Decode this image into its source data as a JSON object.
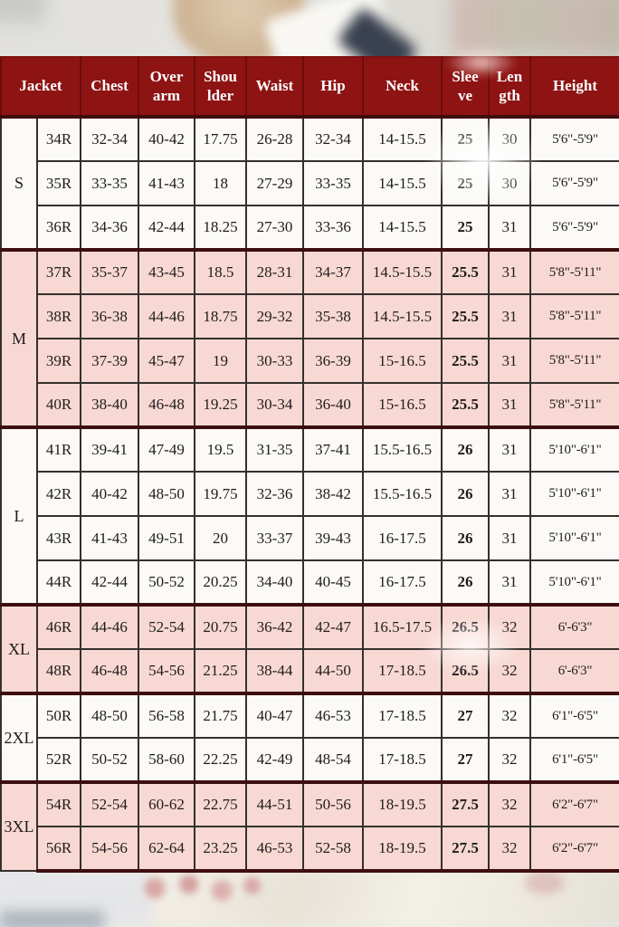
{
  "colors": {
    "header_bg": "#8e1414",
    "header_text": "#ffffff",
    "row_pink": "#f8d8d3",
    "row_white": "#fbfaf7",
    "grid_line": "#35302c",
    "group_line": "#3e0e0e",
    "body_text": "#1f1c1a"
  },
  "chart_data": {
    "type": "table",
    "columns": [
      "Jacket",
      "Chest",
      "Over arm",
      "Shoulder",
      "Waist",
      "Hip",
      "Neck",
      "Sleeve",
      "Length",
      "Height"
    ],
    "column_header_lines": [
      [
        "Jacket"
      ],
      [
        "Chest"
      ],
      [
        "Over",
        "arm"
      ],
      [
        "Shou",
        "lder"
      ],
      [
        "Waist"
      ],
      [
        "Hip"
      ],
      [
        "Neck"
      ],
      [
        "Slee",
        "ve"
      ],
      [
        "Len",
        "gth"
      ],
      [
        "Height"
      ]
    ],
    "groups": [
      {
        "label": "S",
        "tone": "white",
        "rows": [
          [
            "34R",
            "32-34",
            "40-42",
            "17.75",
            "26-28",
            "32-34",
            "14-15.5",
            "25",
            "30",
            "5'6\"-5'9\""
          ],
          [
            "35R",
            "33-35",
            "41-43",
            "18",
            "27-29",
            "33-35",
            "14-15.5",
            "25",
            "30",
            "5'6\"-5'9\""
          ],
          [
            "36R",
            "34-36",
            "42-44",
            "18.25",
            "27-30",
            "33-36",
            "14-15.5",
            "25",
            "31",
            "5'6\"-5'9\""
          ]
        ]
      },
      {
        "label": "M",
        "tone": "pink",
        "rows": [
          [
            "37R",
            "35-37",
            "43-45",
            "18.5",
            "28-31",
            "34-37",
            "14.5-15.5",
            "25.5",
            "31",
            "5'8\"-5'11\""
          ],
          [
            "38R",
            "36-38",
            "44-46",
            "18.75",
            "29-32",
            "35-38",
            "14.5-15.5",
            "25.5",
            "31",
            "5'8\"-5'11\""
          ],
          [
            "39R",
            "37-39",
            "45-47",
            "19",
            "30-33",
            "36-39",
            "15-16.5",
            "25.5",
            "31",
            "5'8\"-5'11\""
          ],
          [
            "40R",
            "38-40",
            "46-48",
            "19.25",
            "30-34",
            "36-40",
            "15-16.5",
            "25.5",
            "31",
            "5'8\"-5'11\""
          ]
        ]
      },
      {
        "label": "L",
        "tone": "white",
        "rows": [
          [
            "41R",
            "39-41",
            "47-49",
            "19.5",
            "31-35",
            "37-41",
            "15.5-16.5",
            "26",
            "31",
            "5'10\"-6'1\""
          ],
          [
            "42R",
            "40-42",
            "48-50",
            "19.75",
            "32-36",
            "38-42",
            "15.5-16.5",
            "26",
            "31",
            "5'10\"-6'1\""
          ],
          [
            "43R",
            "41-43",
            "49-51",
            "20",
            "33-37",
            "39-43",
            "16-17.5",
            "26",
            "31",
            "5'10\"-6'1\""
          ],
          [
            "44R",
            "42-44",
            "50-52",
            "20.25",
            "34-40",
            "40-45",
            "16-17.5",
            "26",
            "31",
            "5'10\"-6'1\""
          ]
        ]
      },
      {
        "label": "XL",
        "tone": "pink",
        "rows": [
          [
            "46R",
            "44-46",
            "52-54",
            "20.75",
            "36-42",
            "42-47",
            "16.5-17.5",
            "26.5",
            "32",
            "6'-6'3\""
          ],
          [
            "48R",
            "46-48",
            "54-56",
            "21.25",
            "38-44",
            "44-50",
            "17-18.5",
            "26.5",
            "32",
            "6'-6'3\""
          ]
        ]
      },
      {
        "label": "2XL",
        "tone": "white",
        "rows": [
          [
            "50R",
            "48-50",
            "56-58",
            "21.75",
            "40-47",
            "46-53",
            "17-18.5",
            "27",
            "32",
            "6'1\"-6'5\""
          ],
          [
            "52R",
            "50-52",
            "58-60",
            "22.25",
            "42-49",
            "48-54",
            "17-18.5",
            "27",
            "32",
            "6'1\"-6'5\""
          ]
        ]
      },
      {
        "label": "3XL",
        "tone": "pink",
        "rows": [
          [
            "54R",
            "52-54",
            "60-62",
            "22.75",
            "44-51",
            "50-56",
            "18-19.5",
            "27.5",
            "32",
            "6'2\"-6'7\""
          ],
          [
            "56R",
            "54-56",
            "62-64",
            "23.25",
            "46-53",
            "52-58",
            "18-19.5",
            "27.5",
            "32",
            "6'2\"-6'7\""
          ]
        ]
      }
    ]
  }
}
